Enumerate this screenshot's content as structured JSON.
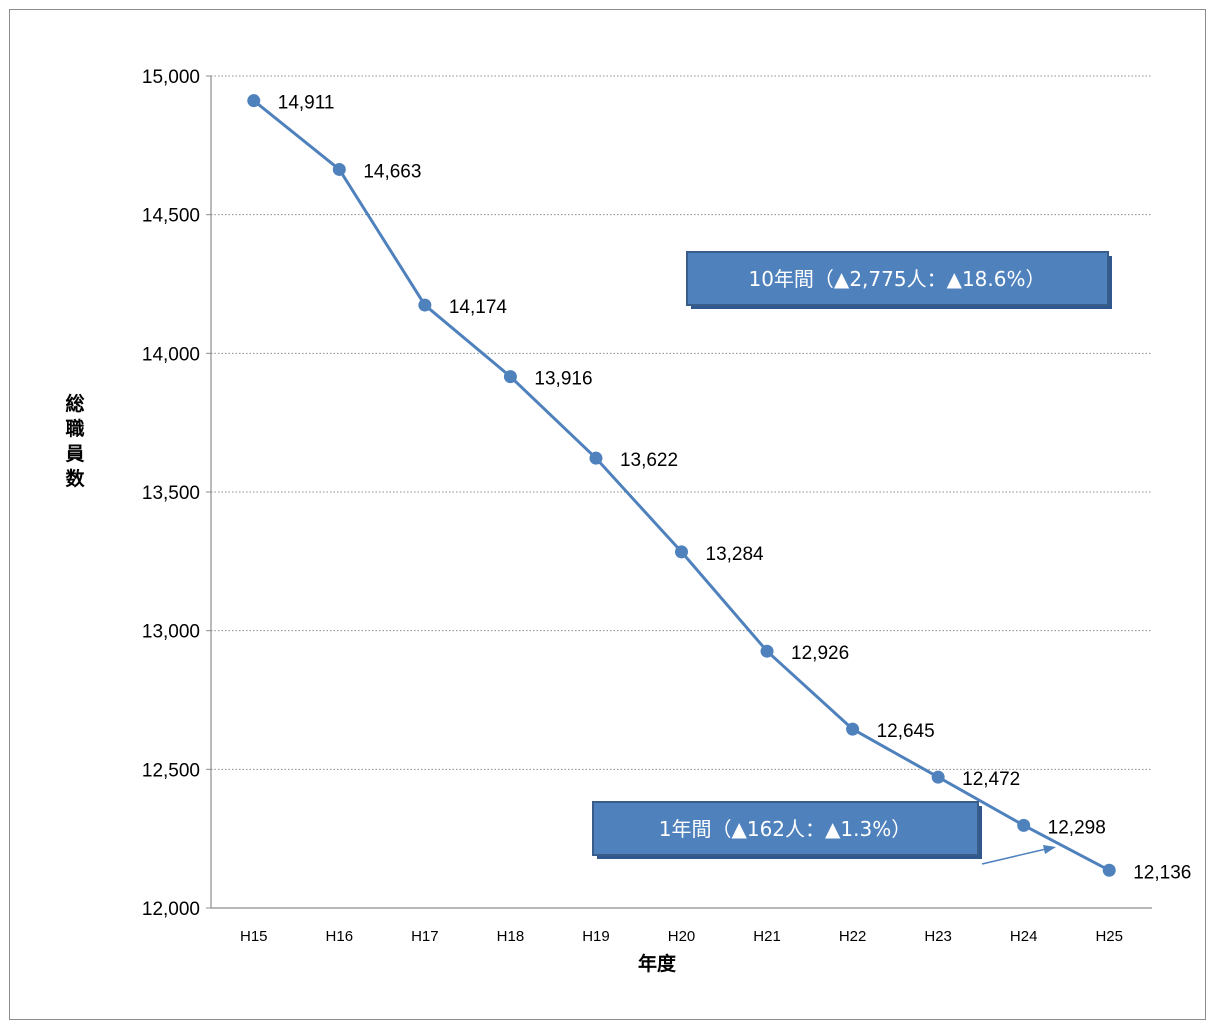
{
  "chart_data": {
    "type": "line",
    "categories": [
      "H15",
      "H16",
      "H17",
      "H18",
      "H19",
      "H20",
      "H21",
      "H22",
      "H23",
      "H24",
      "H25"
    ],
    "series": [
      {
        "values": [
          14911,
          14663,
          14174,
          13916,
          13622,
          13284,
          12926,
          12645,
          12472,
          12298,
          12136
        ]
      }
    ],
    "data_labels": [
      "14,911",
      "14,663",
      "14,174",
      "13,916",
      "13,622",
      "13,284",
      "12,926",
      "12,645",
      "12,472",
      "12,298",
      "12,136"
    ],
    "xlabel": "年度",
    "ylabel": "総職員数",
    "ylim": [
      12000,
      15000
    ],
    "yticks": [
      12000,
      12500,
      13000,
      13500,
      14000,
      14500,
      15000
    ],
    "ytick_labels": [
      "12,000",
      "12,500",
      "13,000",
      "13,500",
      "14,000",
      "14,500",
      "15,000"
    ],
    "grid": true,
    "line_color": "#4f81bd",
    "annotations": [
      {
        "text": "10年間（▲2,775人：▲18.6%）"
      },
      {
        "text": "1年間（▲162人：▲1.3%）"
      }
    ]
  }
}
